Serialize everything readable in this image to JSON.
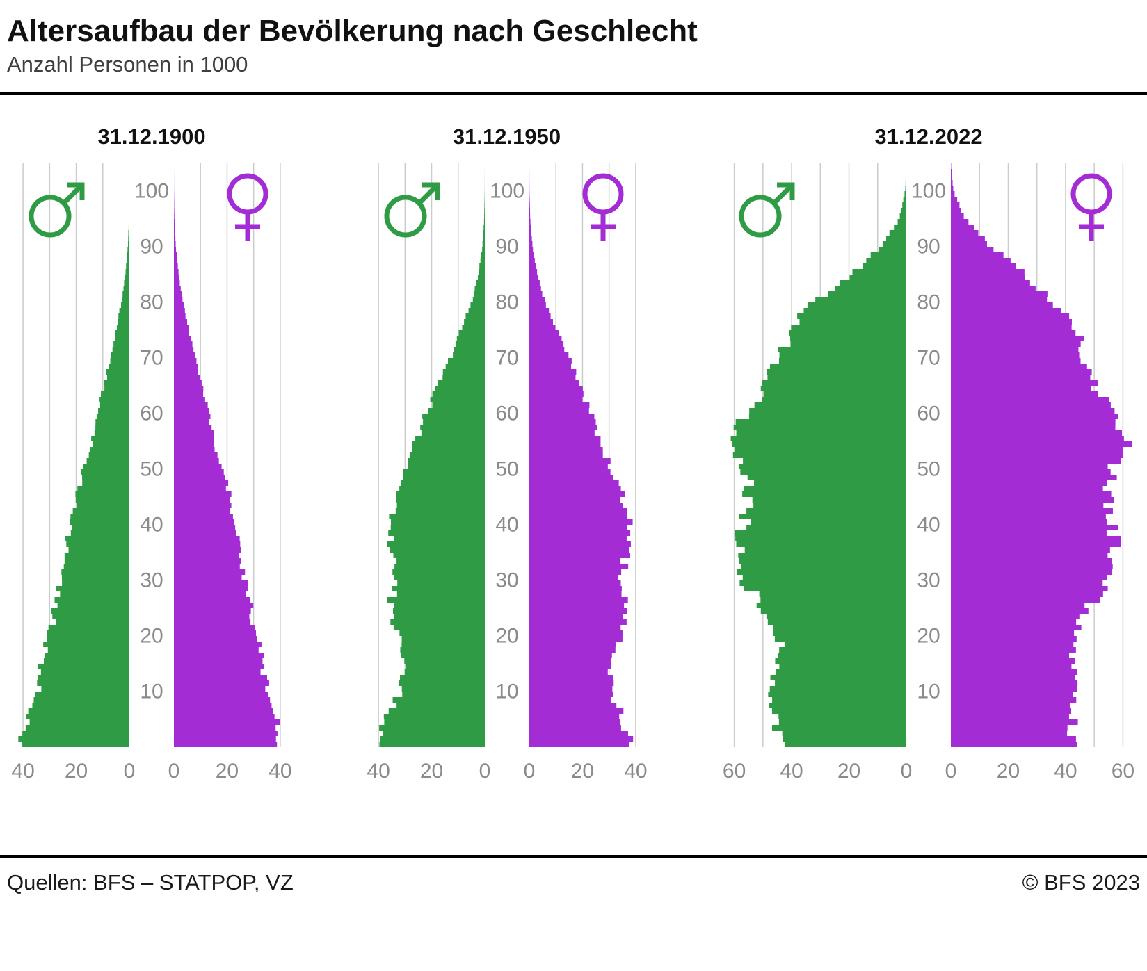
{
  "header": {
    "title": "Altersaufbau der Bevölkerung nach Geschlecht",
    "subtitle": "Anzahl Personen in 1000"
  },
  "footer": {
    "sources": "Quellen: BFS – STATPOP, VZ",
    "copyright": "© BFS 2023"
  },
  "colors": {
    "male": "#2F9C45",
    "female": "#A32CD4",
    "grid": "#CCCCCC",
    "axis_text": "#8A8A8A",
    "title_text": "#111111"
  },
  "icons": {
    "male": "mars-symbol",
    "female": "venus-symbol"
  },
  "chart_data": [
    {
      "type": "bar",
      "subtype": "population-pyramid",
      "title": "31.12.1900",
      "unit": "Anzahl Personen in 1000",
      "xmax": 45,
      "grid_max": 40,
      "xticks": [
        0,
        20,
        40
      ],
      "age_ticks": [
        10,
        20,
        30,
        40,
        50,
        60,
        70,
        80,
        90,
        100
      ],
      "age_points": [
        0,
        5,
        10,
        15,
        20,
        25,
        30,
        35,
        40,
        45,
        50,
        55,
        60,
        65,
        70,
        75,
        80,
        85,
        90,
        95,
        100,
        105
      ],
      "male": {
        "symbol": "♂",
        "values": [
          42,
          38,
          35,
          33,
          30,
          28,
          26,
          24,
          22,
          20,
          17,
          14,
          12,
          9.5,
          7,
          5,
          3,
          1.5,
          0.6,
          0.15,
          0.03,
          0
        ]
      },
      "female": {
        "symbol": "♀",
        "values": [
          41,
          38,
          35,
          33,
          31,
          29,
          27,
          25,
          23,
          21,
          18,
          15,
          13,
          10.5,
          8,
          5.5,
          3.5,
          1.8,
          0.7,
          0.2,
          0.04,
          0
        ]
      }
    },
    {
      "type": "bar",
      "subtype": "population-pyramid",
      "title": "31.12.1950",
      "unit": "Anzahl Personen in 1000",
      "xmax": 45,
      "grid_max": 40,
      "xticks": [
        0,
        20,
        40
      ],
      "age_ticks": [
        10,
        20,
        30,
        40,
        50,
        60,
        70,
        80,
        90,
        100
      ],
      "age_points": [
        0,
        5,
        10,
        15,
        20,
        25,
        30,
        35,
        40,
        45,
        50,
        55,
        60,
        65,
        70,
        75,
        80,
        85,
        90,
        95,
        100,
        105
      ],
      "male": {
        "symbol": "♂",
        "values": [
          41,
          37,
          32,
          31,
          33,
          36,
          33,
          35,
          36,
          34,
          30,
          26,
          22,
          17.5,
          13,
          9,
          5,
          2.4,
          0.9,
          0.25,
          0.04,
          0
        ]
      },
      "female": {
        "symbol": "♀",
        "values": [
          39,
          35,
          31,
          31,
          34,
          36,
          34,
          37,
          38,
          35,
          31,
          27,
          23,
          19,
          15,
          10.5,
          6,
          3,
          1.2,
          0.35,
          0.05,
          0
        ]
      }
    },
    {
      "type": "bar",
      "subtype": "population-pyramid",
      "title": "31.12.2022",
      "unit": "Anzahl Personen in 1000",
      "xmax": 65,
      "grid_max": 60,
      "xticks": [
        0,
        20,
        40,
        60
      ],
      "age_ticks": [
        10,
        20,
        30,
        40,
        50,
        60,
        70,
        80,
        90,
        100
      ],
      "age_points": [
        0,
        5,
        10,
        15,
        20,
        25,
        30,
        35,
        40,
        45,
        50,
        55,
        60,
        65,
        70,
        75,
        80,
        85,
        90,
        95,
        100,
        105
      ],
      "male": {
        "symbol": "♂",
        "values": [
          44,
          46,
          46,
          45,
          44,
          50,
          56,
          58,
          57,
          55,
          56,
          62,
          57,
          49,
          44,
          41,
          32,
          19,
          9,
          2.5,
          0.4,
          0
        ]
      },
      "female": {
        "symbol": "♀",
        "values": [
          42,
          43,
          43,
          42,
          42,
          48,
          55,
          57,
          56,
          54,
          56,
          61,
          57,
          50,
          46,
          44,
          36,
          26,
          14,
          5,
          0.9,
          0
        ]
      }
    }
  ]
}
